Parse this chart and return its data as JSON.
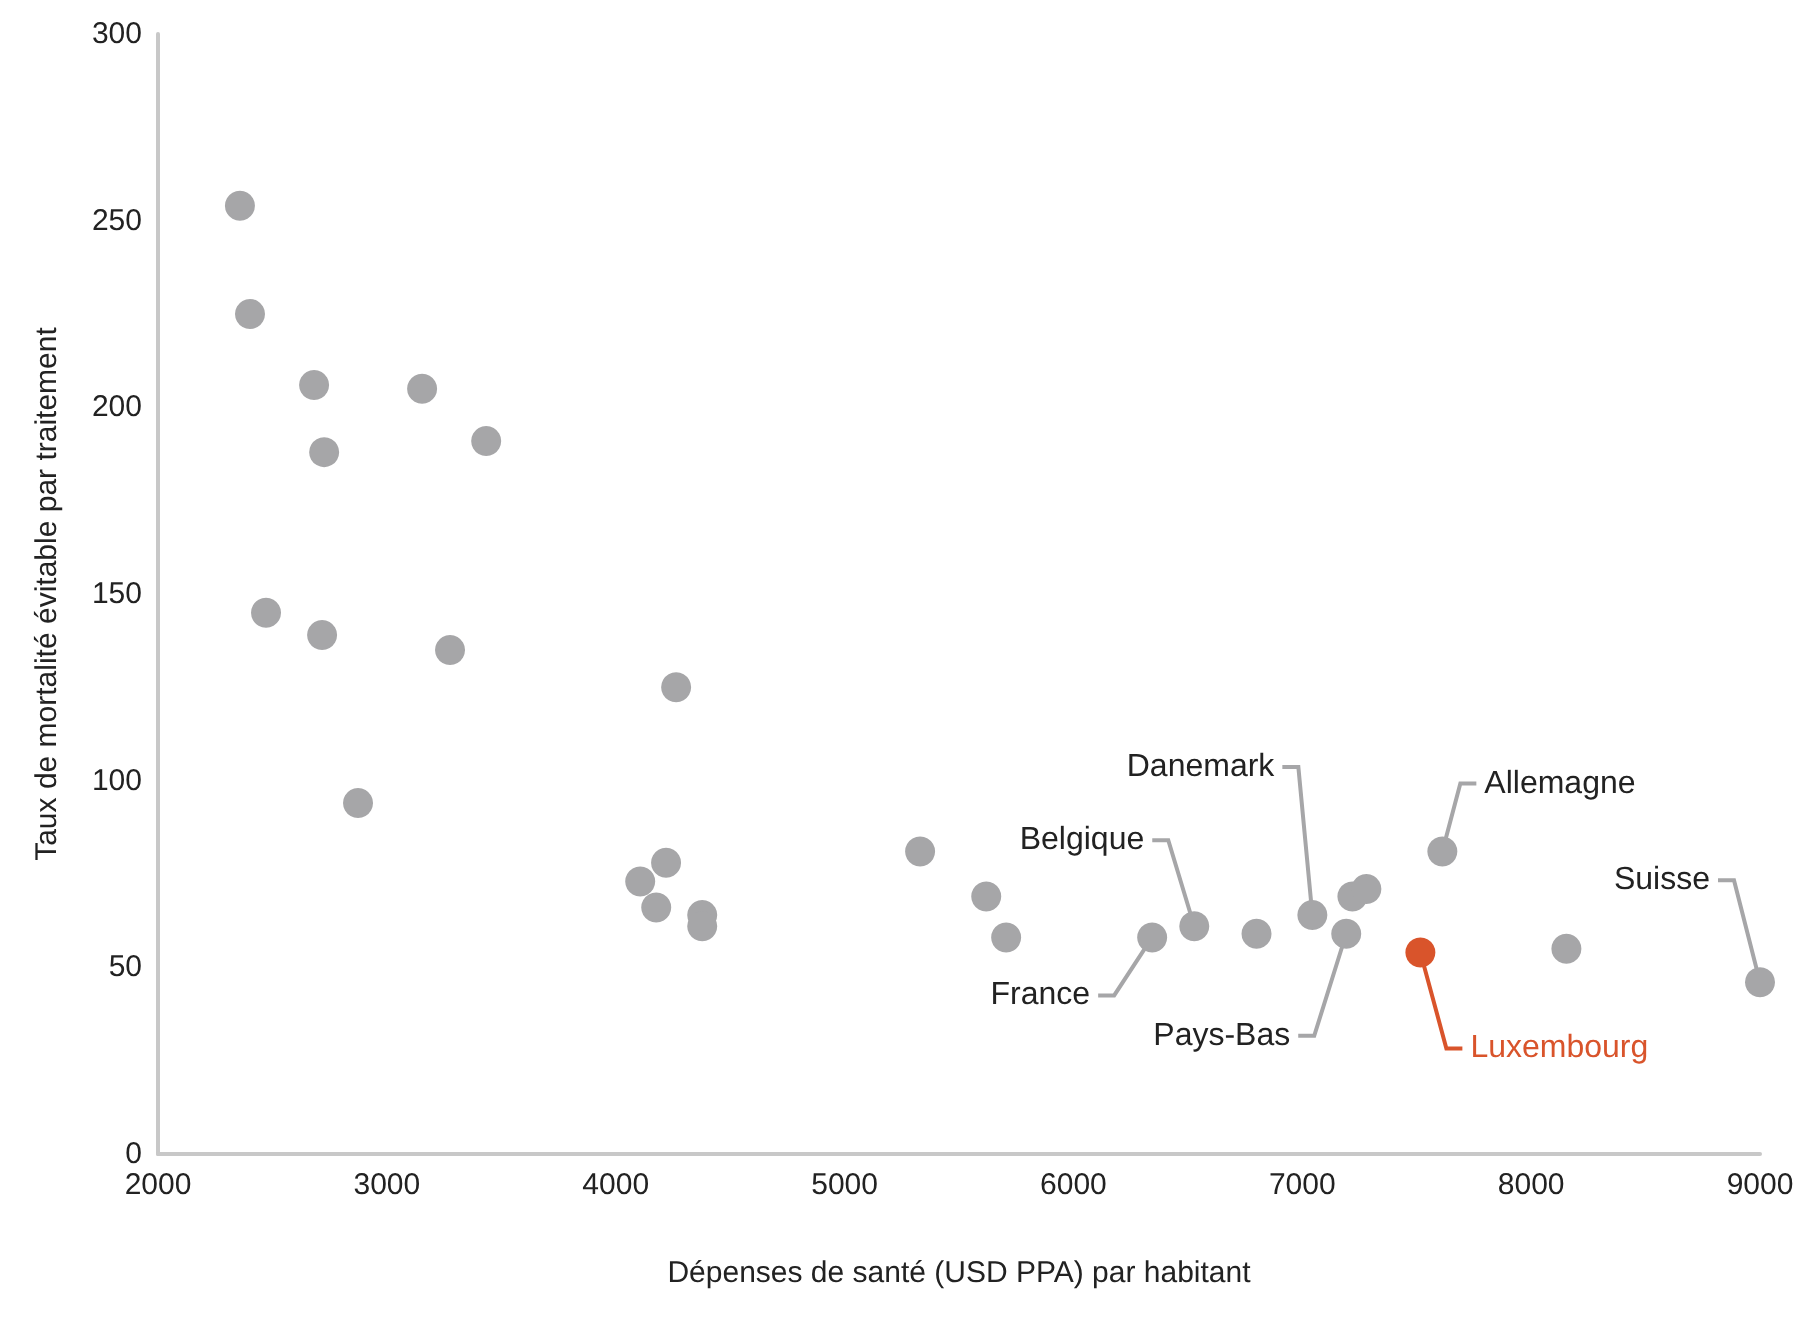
{
  "chart_data": {
    "type": "scatter",
    "xlabel": "Dépenses de santé (USD PPA) par habitant",
    "ylabel": "Taux de mortalité évitable par traitement",
    "xlim": [
      2000,
      9000
    ],
    "xticks": [
      2000,
      3000,
      4000,
      5000,
      6000,
      7000,
      8000,
      9000
    ],
    "ylim": [
      0,
      300
    ],
    "yticks": [
      0,
      50,
      100,
      150,
      200,
      250,
      300
    ],
    "grid": false,
    "marker": "circle",
    "series": [
      {
        "color": "#a6a6a8",
        "x": [
          2358,
          2402,
          2682,
          2726,
          3154,
          3434,
          2472,
          2717,
          3276,
          2874,
          4264,
          4107,
          4220,
          4177,
          4378,
          4378,
          5330,
          5619,
          5706,
          6344,
          6528,
          6800,
          7044,
          7192,
          7219,
          7280,
          7612,
          8154,
          9000
        ],
        "values": [
          254,
          225,
          206,
          188,
          205,
          191,
          145,
          139,
          135,
          94,
          125,
          73,
          78,
          66,
          64,
          61,
          81,
          69,
          58,
          58,
          61,
          59,
          64,
          59,
          69,
          71,
          81,
          55,
          46
        ]
      },
      {
        "name": "Luxembourg",
        "color": "#d9542b",
        "x": [
          7516
        ],
        "values": [
          54
        ]
      }
    ],
    "annotations": [
      {
        "text": "France",
        "x": 6344,
        "y": 58
      },
      {
        "text": "Belgique",
        "x": 6528,
        "y": 61
      },
      {
        "text": "Danemark",
        "x": 7044,
        "y": 64
      },
      {
        "text": "Pays-Bas",
        "x": 7192,
        "y": 59
      },
      {
        "text": "Allemagne",
        "x": 7612,
        "y": 81
      },
      {
        "text": "Suisse",
        "x": 9000,
        "y": 46
      }
    ]
  }
}
